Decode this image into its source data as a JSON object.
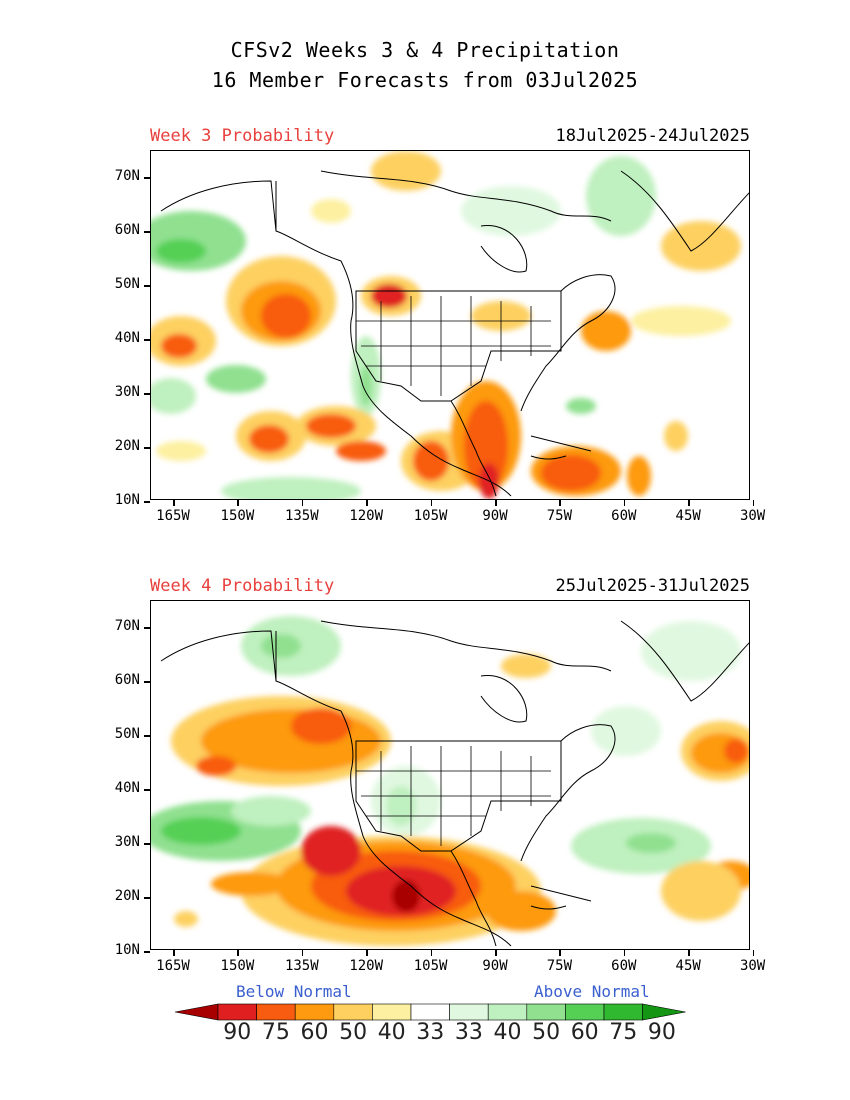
{
  "title": {
    "line1": "CFSv2 Weeks 3 & 4 Precipitation",
    "line2": "16 Member Forecasts from 03Jul2025"
  },
  "panels": [
    {
      "label": "Week 3 Probability",
      "dates": "18Jul2025-24Jul2025"
    },
    {
      "label": "Week 4 Probability",
      "dates": "25Jul2025-31Jul2025"
    }
  ],
  "axes": {
    "lat_labels": [
      "70N",
      "60N",
      "50N",
      "40N",
      "30N",
      "20N",
      "10N"
    ],
    "lon_labels": [
      "165W",
      "150W",
      "135W",
      "120W",
      "105W",
      "90W",
      "75W",
      "60W",
      "45W",
      "30W"
    ]
  },
  "legend": {
    "below_label": "Below Normal",
    "above_label": "Above Normal",
    "values": [
      "90",
      "75",
      "60",
      "50",
      "40",
      "33",
      "33",
      "40",
      "50",
      "60",
      "75",
      "90"
    ],
    "colors": [
      "#a80000",
      "#e02020",
      "#f85c10",
      "#fd9a10",
      "#fdd060",
      "#fdf0a0",
      "#ffffff",
      "#e0f8e0",
      "#bff0bf",
      "#90e090",
      "#55d055",
      "#30b830",
      "#149614"
    ]
  },
  "colors": {
    "below_text": "#e8403c",
    "above_text": "#3a5fcf"
  }
}
